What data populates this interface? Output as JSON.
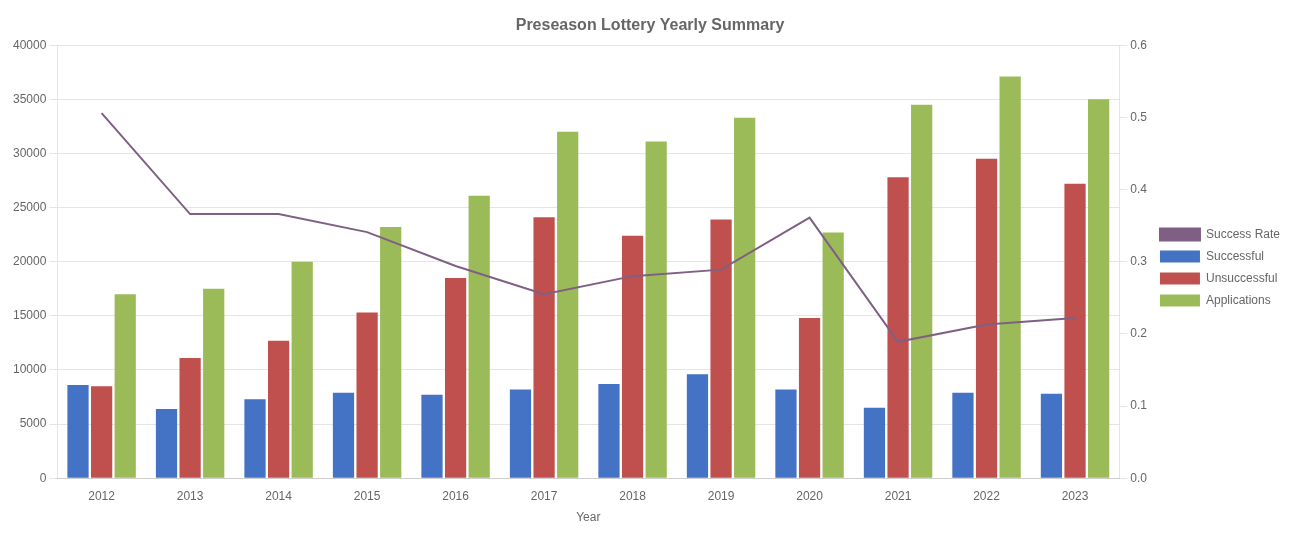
{
  "chart_data": {
    "type": "bar",
    "title": "Preseason Lottery Yearly Summary",
    "x_label": "Year",
    "categories": [
      "2012",
      "2013",
      "2014",
      "2015",
      "2016",
      "2017",
      "2018",
      "2019",
      "2020",
      "2021",
      "2022",
      "2023"
    ],
    "series": [
      {
        "name": "Successful",
        "color": "#4472C4",
        "values": [
          8600,
          6400,
          7300,
          7900,
          7700,
          8200,
          8700,
          9600,
          8200,
          6500,
          7900,
          7800
        ]
      },
      {
        "name": "Unsuccessful",
        "color": "#C0504D",
        "values": [
          8500,
          11100,
          12700,
          15300,
          18500,
          24100,
          22400,
          23900,
          14800,
          27800,
          29500,
          27200
        ]
      },
      {
        "name": "Applications",
        "color": "#9BBB59",
        "values": [
          17000,
          17500,
          20000,
          23200,
          26100,
          32000,
          31100,
          33300,
          22700,
          34500,
          37100,
          35000
        ]
      },
      {
        "name": "Success Rate",
        "type": "line",
        "axis": "y2",
        "color": "#7F6084",
        "marker": "none",
        "values": [
          0.506,
          0.366,
          0.366,
          0.341,
          0.294,
          0.255,
          0.28,
          0.289,
          0.361,
          0.189,
          0.213,
          0.222
        ]
      }
    ],
    "ylim": [
      0,
      40000
    ],
    "yticks": [
      0,
      5000,
      10000,
      15000,
      20000,
      25000,
      30000,
      35000,
      40000
    ],
    "y2lim": [
      0,
      0.6
    ],
    "y2ticks": [
      {
        "value": 0,
        "label": "0.0"
      },
      0.1,
      0.2,
      0.3,
      0.4,
      0.5,
      0.6
    ],
    "grid": true,
    "legend": "right"
  }
}
